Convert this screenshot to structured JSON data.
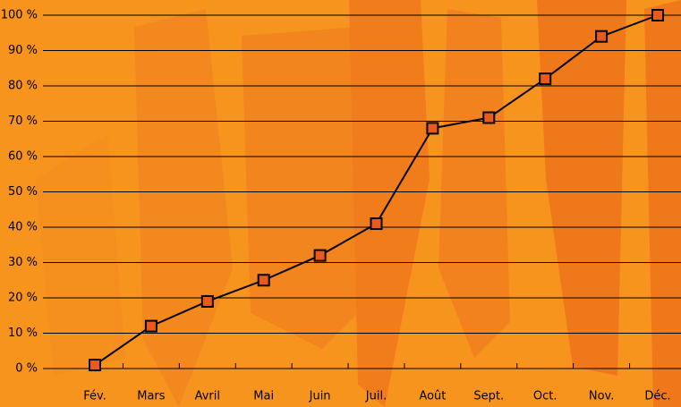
{
  "chart_data": {
    "type": "line",
    "categories": [
      "Fév.",
      "Mars",
      "Avril",
      "Mai",
      "Juin",
      "Juil.",
      "Août",
      "Sept.",
      "Oct.",
      "Nov.",
      "Déc."
    ],
    "values": [
      1,
      12,
      19,
      25,
      32,
      41,
      68,
      71,
      82,
      94,
      100
    ],
    "color": "#000000",
    "marker_color": "#ea5a1c",
    "ylim": [
      0,
      100
    ],
    "yticks": [
      {
        "value": 0,
        "label": "0 %"
      },
      {
        "value": 10,
        "label": "10 %"
      },
      {
        "value": 20,
        "label": "20 %"
      },
      {
        "value": 30,
        "label": "30 %"
      },
      {
        "value": 40,
        "label": "40 %"
      },
      {
        "value": 50,
        "label": "50 %"
      },
      {
        "value": 60,
        "label": "60 %"
      },
      {
        "value": 70,
        "label": "70 %"
      },
      {
        "value": 80,
        "label": "80 %"
      },
      {
        "value": 90,
        "label": "90 %"
      },
      {
        "value": 100,
        "label": "100 %"
      }
    ],
    "grid": true
  }
}
